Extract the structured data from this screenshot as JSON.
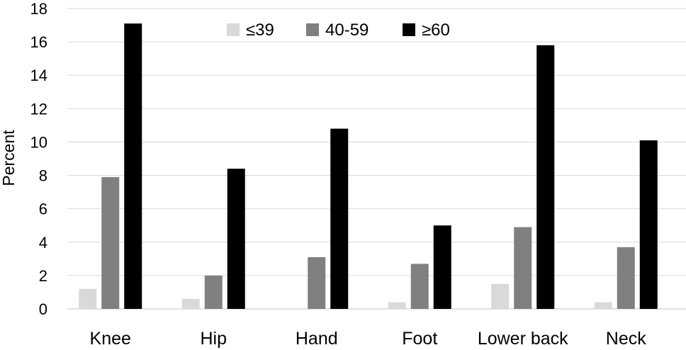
{
  "chart_data": {
    "type": "bar",
    "title": "",
    "xlabel": "",
    "ylabel": "Percent",
    "ylim": [
      0,
      18
    ],
    "yticks": [
      0,
      2,
      4,
      6,
      8,
      10,
      12,
      14,
      16,
      18
    ],
    "grid": true,
    "legend_position": "top-center",
    "categories": [
      "Knee",
      "Hip",
      "Hand",
      "Foot",
      "Lower back",
      "Neck"
    ],
    "series": [
      {
        "name": "≤39",
        "color": "#d9d9d9",
        "values": [
          1.2,
          0.6,
          0.0,
          0.4,
          1.5,
          0.4
        ]
      },
      {
        "name": "40-59",
        "color": "#808080",
        "values": [
          7.9,
          2.0,
          3.1,
          2.7,
          4.9,
          3.7
        ]
      },
      {
        "name": "≥60",
        "color": "#000000",
        "values": [
          17.1,
          8.4,
          10.8,
          5.0,
          15.8,
          10.1
        ]
      }
    ]
  }
}
